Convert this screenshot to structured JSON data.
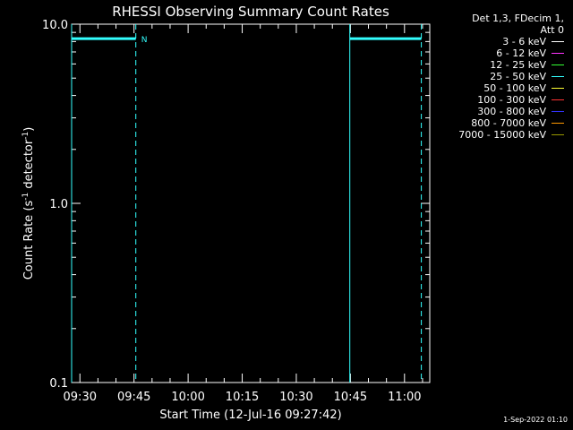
{
  "chart_data": {
    "type": "line",
    "title": "RHESSI Observing Summary Count Rates",
    "xlabel": "Start Time (12-Jul-16 09:27:42)",
    "ylabel": "Count Rate (s⁻¹ detector⁻¹)",
    "yscale": "log",
    "ylim": [
      0.1,
      10.0
    ],
    "yticks": [
      "10.0",
      "1.0",
      "0.1"
    ],
    "xlim": [
      "09:27:42",
      "11:07:00"
    ],
    "xticks": [
      "09:30",
      "09:45",
      "10:00",
      "10:15",
      "10:30",
      "10:45",
      "11:00"
    ],
    "grid": false,
    "legend_position": "top-right, outside plot",
    "legend_header": [
      "Det 1,3, FDecim 1,",
      "Att 0"
    ],
    "series": [
      {
        "name": "3 - 6 keV",
        "color": "#ffffff",
        "points": []
      },
      {
        "name": "6 - 12 keV",
        "color": "#ff33ff",
        "points": []
      },
      {
        "name": "12 - 25 keV",
        "color": "#33ff33",
        "points": []
      },
      {
        "name": "25 - 50 keV",
        "color": "#33ffff",
        "points": [
          {
            "x": "09:27:42",
            "y": 8.3
          },
          {
            "x": "09:45:30",
            "y": 8.3
          },
          {
            "x": "10:44:50",
            "y": 8.3
          },
          {
            "x": "11:04:40",
            "y": 8.3
          }
        ]
      },
      {
        "name": "50 - 100 keV",
        "color": "#ffff33",
        "points": []
      },
      {
        "name": "100 - 300 keV",
        "color": "#ff3333",
        "points": []
      },
      {
        "name": "300 - 800 keV",
        "color": "#3333ff",
        "points": []
      },
      {
        "name": "800 - 7000 keV",
        "color": "#ff9900",
        "points": []
      },
      {
        "name": "7000 - 15000 keV",
        "color": "#999900",
        "points": []
      }
    ],
    "solid_markers": [
      "09:27:42",
      "10:44:50"
    ],
    "dashed_markers": [
      "09:45:30",
      "11:04:40"
    ],
    "annotations": [
      {
        "text": "N",
        "x": "09:45:30",
        "y": 8.3
      }
    ]
  },
  "footer": {
    "timestamp": "1-Sep-2022 01:10"
  }
}
